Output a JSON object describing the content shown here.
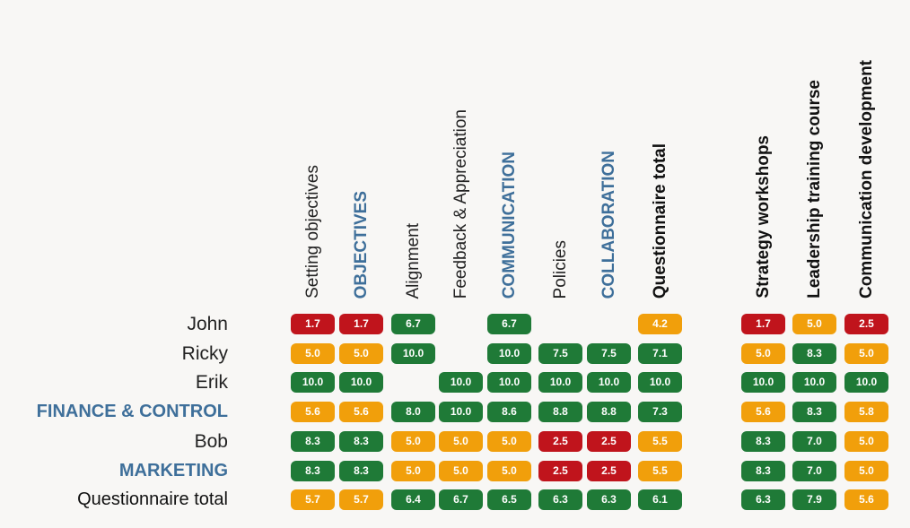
{
  "colors": {
    "low": "#c0141c",
    "mid": "#f19f0b",
    "high": "#1f7a37",
    "group_text": "#3e6f9a"
  },
  "chart_data": {
    "type": "heatmap",
    "columns": [
      {
        "label": "Setting objectives",
        "style": "plain"
      },
      {
        "label": "OBJECTIVES",
        "style": "group"
      },
      {
        "label": "Alignment",
        "style": "plain"
      },
      {
        "label": "Feedback & Appreciation",
        "style": "plain"
      },
      {
        "label": "COMMUNICATION",
        "style": "group"
      },
      {
        "label": "Policies",
        "style": "plain"
      },
      {
        "label": "COLLABORATION",
        "style": "group"
      },
      {
        "label": "Questionnaire total",
        "style": "total"
      },
      {
        "label": "Strategy workshops",
        "style": "total"
      },
      {
        "label": "Leadership training course",
        "style": "total"
      },
      {
        "label": "Communication development",
        "style": "total"
      }
    ],
    "rows": [
      {
        "label": "John",
        "style": "plain",
        "values": [
          1.7,
          1.7,
          6.7,
          null,
          6.7,
          null,
          null,
          4.2,
          1.7,
          5.0,
          2.5
        ]
      },
      {
        "label": "Ricky",
        "style": "plain",
        "values": [
          5.0,
          5.0,
          10.0,
          null,
          10.0,
          7.5,
          7.5,
          7.1,
          5.0,
          8.3,
          5.0
        ]
      },
      {
        "label": "Erik",
        "style": "plain",
        "values": [
          10.0,
          10.0,
          null,
          10.0,
          10.0,
          10.0,
          10.0,
          10.0,
          10.0,
          10.0,
          10.0
        ]
      },
      {
        "label": "FINANCE & CONTROL",
        "style": "group",
        "values": [
          5.6,
          5.6,
          8.0,
          10.0,
          8.6,
          8.8,
          8.8,
          7.3,
          5.6,
          8.3,
          5.8
        ]
      },
      {
        "label": "Bob",
        "style": "plain",
        "values": [
          8.3,
          8.3,
          5.0,
          5.0,
          5.0,
          2.5,
          2.5,
          5.5,
          8.3,
          7.0,
          5.0
        ]
      },
      {
        "label": "MARKETING",
        "style": "group",
        "values": [
          8.3,
          8.3,
          5.0,
          5.0,
          5.0,
          2.5,
          2.5,
          5.5,
          8.3,
          7.0,
          5.0
        ]
      },
      {
        "label": "Questionnaire total",
        "style": "total",
        "values": [
          5.7,
          5.7,
          6.4,
          6.7,
          6.5,
          6.3,
          6.3,
          6.1,
          6.3,
          7.9,
          5.6
        ]
      }
    ],
    "thresholds": {
      "low_below": 3.0,
      "mid_below": 6.0
    }
  }
}
